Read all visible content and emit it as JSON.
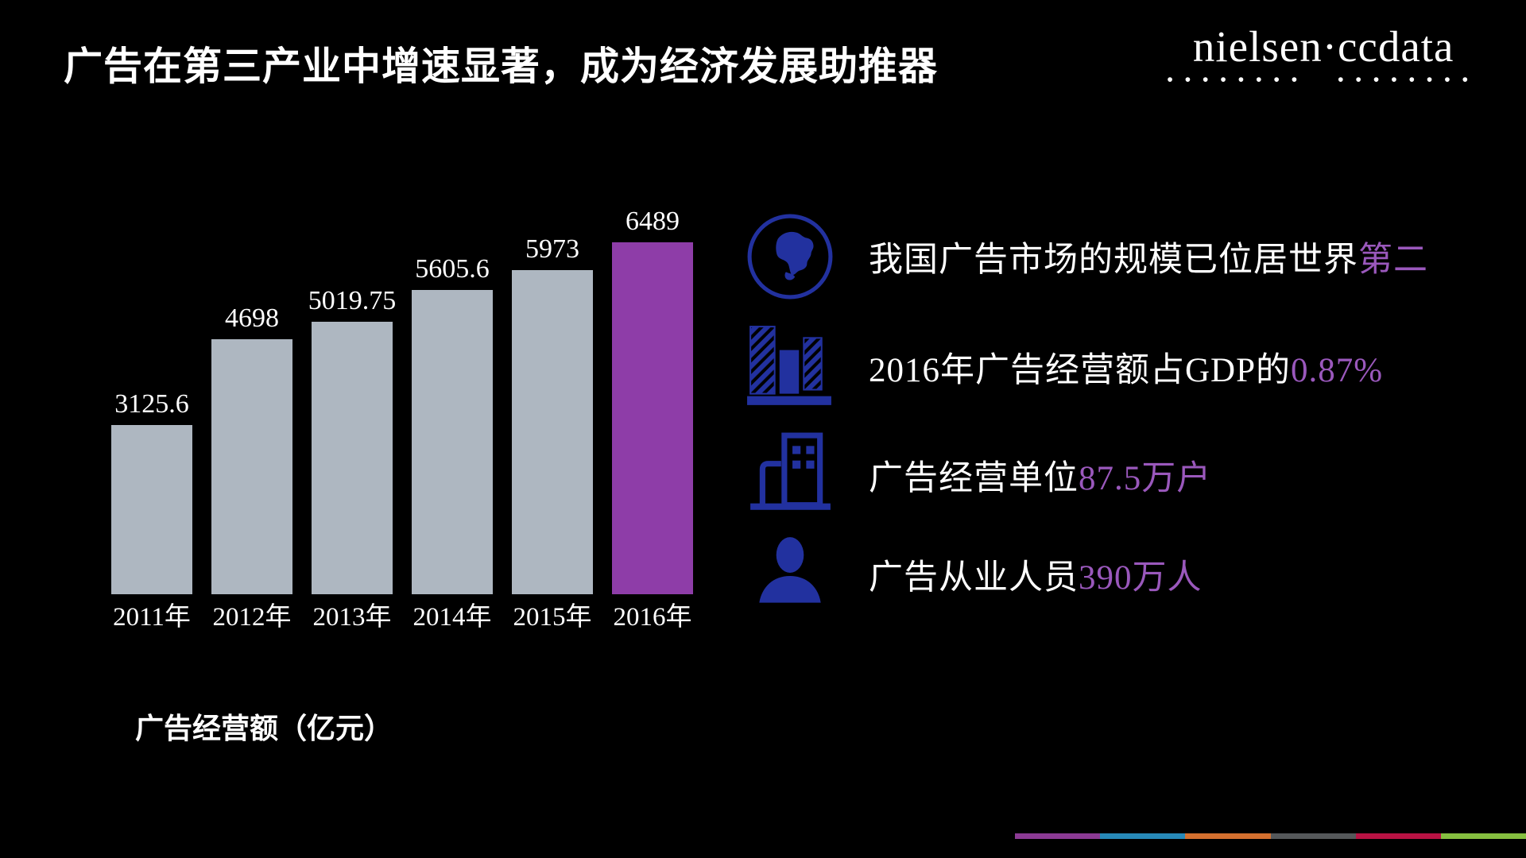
{
  "slide": {
    "title": "广告在第三产业中增速显著，成为经济发展助推器",
    "logo": "nielsen·ccdata"
  },
  "chart_data": {
    "type": "bar",
    "title": "广告经营额（亿元）",
    "unit_label": "广告经营额（亿元）",
    "categories": [
      "2011年",
      "2012年",
      "2013年",
      "2014年",
      "2015年",
      "2016年"
    ],
    "values": [
      3125.6,
      4698,
      5019.75,
      5605.6,
      5973,
      6489
    ],
    "value_labels": [
      "3125.6",
      "4698",
      "5019.75",
      "5605.6",
      "5973",
      "6489"
    ],
    "highlight_index": 5,
    "bar_color": "#aeb7c1",
    "highlight_color": "#8e3da8",
    "ylim": [
      0,
      6900
    ],
    "grid": false,
    "legend": false
  },
  "bullets": [
    {
      "icon": "globe-icon",
      "text": "我国广告市场的规模已位居世界",
      "highlight": "第二"
    },
    {
      "icon": "bar-chart-icon",
      "text": "2016年广告经营额占GDP的",
      "highlight": "0.87%"
    },
    {
      "icon": "building-icon",
      "text": "广告经营单位",
      "highlight": "87.5万户"
    },
    {
      "icon": "person-icon",
      "text": "广告从业人员",
      "highlight": "390万人"
    }
  ],
  "colors": {
    "background": "#000000",
    "text": "#ffffff",
    "accent_purple": "#9a58bc",
    "icon_blue": "#22319f",
    "bar_gray": "#aeb7c1",
    "bar_purple": "#8e3da8"
  },
  "footer_stripe": [
    "#8b3a94",
    "#2789b8",
    "#d4702f",
    "#55585a",
    "#b81243",
    "#86bf40"
  ]
}
